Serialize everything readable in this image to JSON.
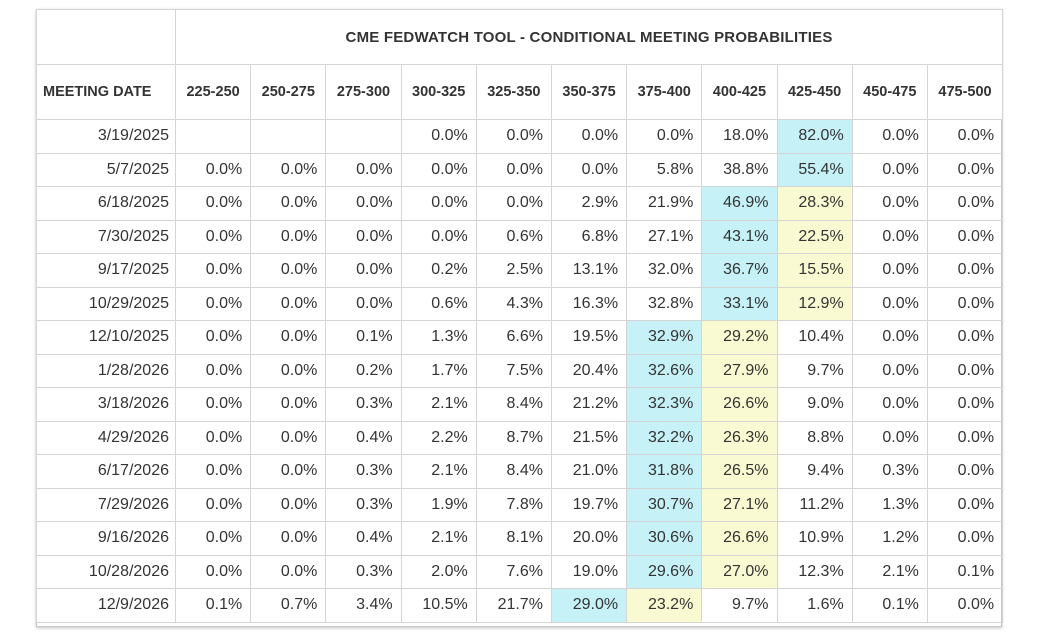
{
  "title": "CME FEDWATCH TOOL - CONDITIONAL MEETING PROBABILITIES",
  "colors": {
    "highest": "#c5f1f7",
    "second": "#fafad2",
    "border": "#d4d4d4"
  },
  "header_date": "MEETING DATE",
  "columns": [
    "225-250",
    "250-275",
    "275-300",
    "300-325",
    "325-350",
    "350-375",
    "375-400",
    "400-425",
    "425-450",
    "450-475",
    "475-500"
  ],
  "rows": [
    {
      "date": "3/19/2025",
      "values": [
        "",
        "",
        "",
        "0.0%",
        "0.0%",
        "0.0%",
        "0.0%",
        "18.0%",
        "82.0%",
        "0.0%",
        "0.0%"
      ],
      "hi1": 8,
      "hi2": -1
    },
    {
      "date": "5/7/2025",
      "values": [
        "0.0%",
        "0.0%",
        "0.0%",
        "0.0%",
        "0.0%",
        "0.0%",
        "5.8%",
        "38.8%",
        "55.4%",
        "0.0%",
        "0.0%"
      ],
      "hi1": 8,
      "hi2": -1
    },
    {
      "date": "6/18/2025",
      "values": [
        "0.0%",
        "0.0%",
        "0.0%",
        "0.0%",
        "0.0%",
        "2.9%",
        "21.9%",
        "46.9%",
        "28.3%",
        "0.0%",
        "0.0%"
      ],
      "hi1": 7,
      "hi2": 8
    },
    {
      "date": "7/30/2025",
      "values": [
        "0.0%",
        "0.0%",
        "0.0%",
        "0.0%",
        "0.6%",
        "6.8%",
        "27.1%",
        "43.1%",
        "22.5%",
        "0.0%",
        "0.0%"
      ],
      "hi1": 7,
      "hi2": 8
    },
    {
      "date": "9/17/2025",
      "values": [
        "0.0%",
        "0.0%",
        "0.0%",
        "0.2%",
        "2.5%",
        "13.1%",
        "32.0%",
        "36.7%",
        "15.5%",
        "0.0%",
        "0.0%"
      ],
      "hi1": 7,
      "hi2": 8
    },
    {
      "date": "10/29/2025",
      "values": [
        "0.0%",
        "0.0%",
        "0.0%",
        "0.6%",
        "4.3%",
        "16.3%",
        "32.8%",
        "33.1%",
        "12.9%",
        "0.0%",
        "0.0%"
      ],
      "hi1": 7,
      "hi2": 8
    },
    {
      "date": "12/10/2025",
      "values": [
        "0.0%",
        "0.0%",
        "0.1%",
        "1.3%",
        "6.6%",
        "19.5%",
        "32.9%",
        "29.2%",
        "10.4%",
        "0.0%",
        "0.0%"
      ],
      "hi1": 6,
      "hi2": 7
    },
    {
      "date": "1/28/2026",
      "values": [
        "0.0%",
        "0.0%",
        "0.2%",
        "1.7%",
        "7.5%",
        "20.4%",
        "32.6%",
        "27.9%",
        "9.7%",
        "0.0%",
        "0.0%"
      ],
      "hi1": 6,
      "hi2": 7
    },
    {
      "date": "3/18/2026",
      "values": [
        "0.0%",
        "0.0%",
        "0.3%",
        "2.1%",
        "8.4%",
        "21.2%",
        "32.3%",
        "26.6%",
        "9.0%",
        "0.0%",
        "0.0%"
      ],
      "hi1": 6,
      "hi2": 7
    },
    {
      "date": "4/29/2026",
      "values": [
        "0.0%",
        "0.0%",
        "0.4%",
        "2.2%",
        "8.7%",
        "21.5%",
        "32.2%",
        "26.3%",
        "8.8%",
        "0.0%",
        "0.0%"
      ],
      "hi1": 6,
      "hi2": 7
    },
    {
      "date": "6/17/2026",
      "values": [
        "0.0%",
        "0.0%",
        "0.3%",
        "2.1%",
        "8.4%",
        "21.0%",
        "31.8%",
        "26.5%",
        "9.4%",
        "0.3%",
        "0.0%"
      ],
      "hi1": 6,
      "hi2": 7
    },
    {
      "date": "7/29/2026",
      "values": [
        "0.0%",
        "0.0%",
        "0.3%",
        "1.9%",
        "7.8%",
        "19.7%",
        "30.7%",
        "27.1%",
        "11.2%",
        "1.3%",
        "0.0%"
      ],
      "hi1": 6,
      "hi2": 7
    },
    {
      "date": "9/16/2026",
      "values": [
        "0.0%",
        "0.0%",
        "0.4%",
        "2.1%",
        "8.1%",
        "20.0%",
        "30.6%",
        "26.6%",
        "10.9%",
        "1.2%",
        "0.0%"
      ],
      "hi1": 6,
      "hi2": 7
    },
    {
      "date": "10/28/2026",
      "values": [
        "0.0%",
        "0.0%",
        "0.3%",
        "2.0%",
        "7.6%",
        "19.0%",
        "29.6%",
        "27.0%",
        "12.3%",
        "2.1%",
        "0.1%"
      ],
      "hi1": 6,
      "hi2": 7
    },
    {
      "date": "12/9/2026",
      "values": [
        "0.1%",
        "0.7%",
        "3.4%",
        "10.5%",
        "21.7%",
        "29.0%",
        "23.2%",
        "9.7%",
        "1.6%",
        "0.1%",
        "0.0%"
      ],
      "hi1": 5,
      "hi2": 6
    }
  ]
}
